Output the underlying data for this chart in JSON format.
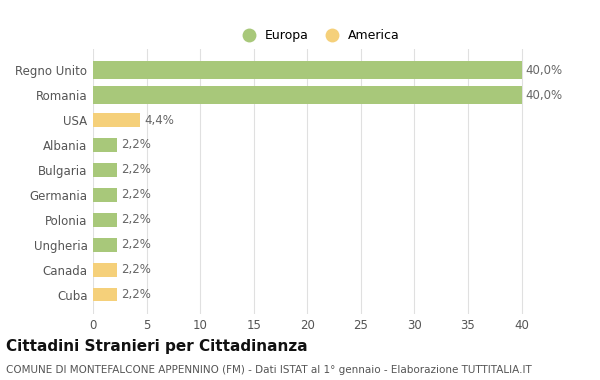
{
  "categories": [
    "Cuba",
    "Canada",
    "Ungheria",
    "Polonia",
    "Germania",
    "Bulgaria",
    "Albania",
    "USA",
    "Romania",
    "Regno Unito"
  ],
  "values": [
    2.2,
    2.2,
    2.2,
    2.2,
    2.2,
    2.2,
    2.2,
    4.4,
    40.0,
    40.0
  ],
  "colors": [
    "#f5d07a",
    "#f5d07a",
    "#a8c87a",
    "#a8c87a",
    "#a8c87a",
    "#a8c87a",
    "#a8c87a",
    "#f5d07a",
    "#a8c87a",
    "#a8c87a"
  ],
  "labels": [
    "2,2%",
    "2,2%",
    "2,2%",
    "2,2%",
    "2,2%",
    "2,2%",
    "2,2%",
    "4,4%",
    "40,0%",
    "40,0%"
  ],
  "bar_heights": [
    0.55,
    0.55,
    0.55,
    0.55,
    0.55,
    0.55,
    0.55,
    0.55,
    0.7,
    0.7
  ],
  "legend_europa_color": "#a8c87a",
  "legend_america_color": "#f5d07a",
  "title": "Cittadini Stranieri per Cittadinanza",
  "subtitle": "COMUNE DI MONTEFALCONE APPENNINO (FM) - Dati ISTAT al 1° gennaio - Elaborazione TUTTITALIA.IT",
  "xlim": [
    0,
    42
  ],
  "xticks": [
    0,
    5,
    10,
    15,
    20,
    25,
    30,
    35,
    40
  ],
  "background_color": "#ffffff",
  "grid_color": "#e0e0e0",
  "label_fontsize": 8.5,
  "tick_fontsize": 8.5,
  "title_fontsize": 11,
  "subtitle_fontsize": 7.5,
  "label_color": "#666666",
  "ytick_color": "#555555"
}
